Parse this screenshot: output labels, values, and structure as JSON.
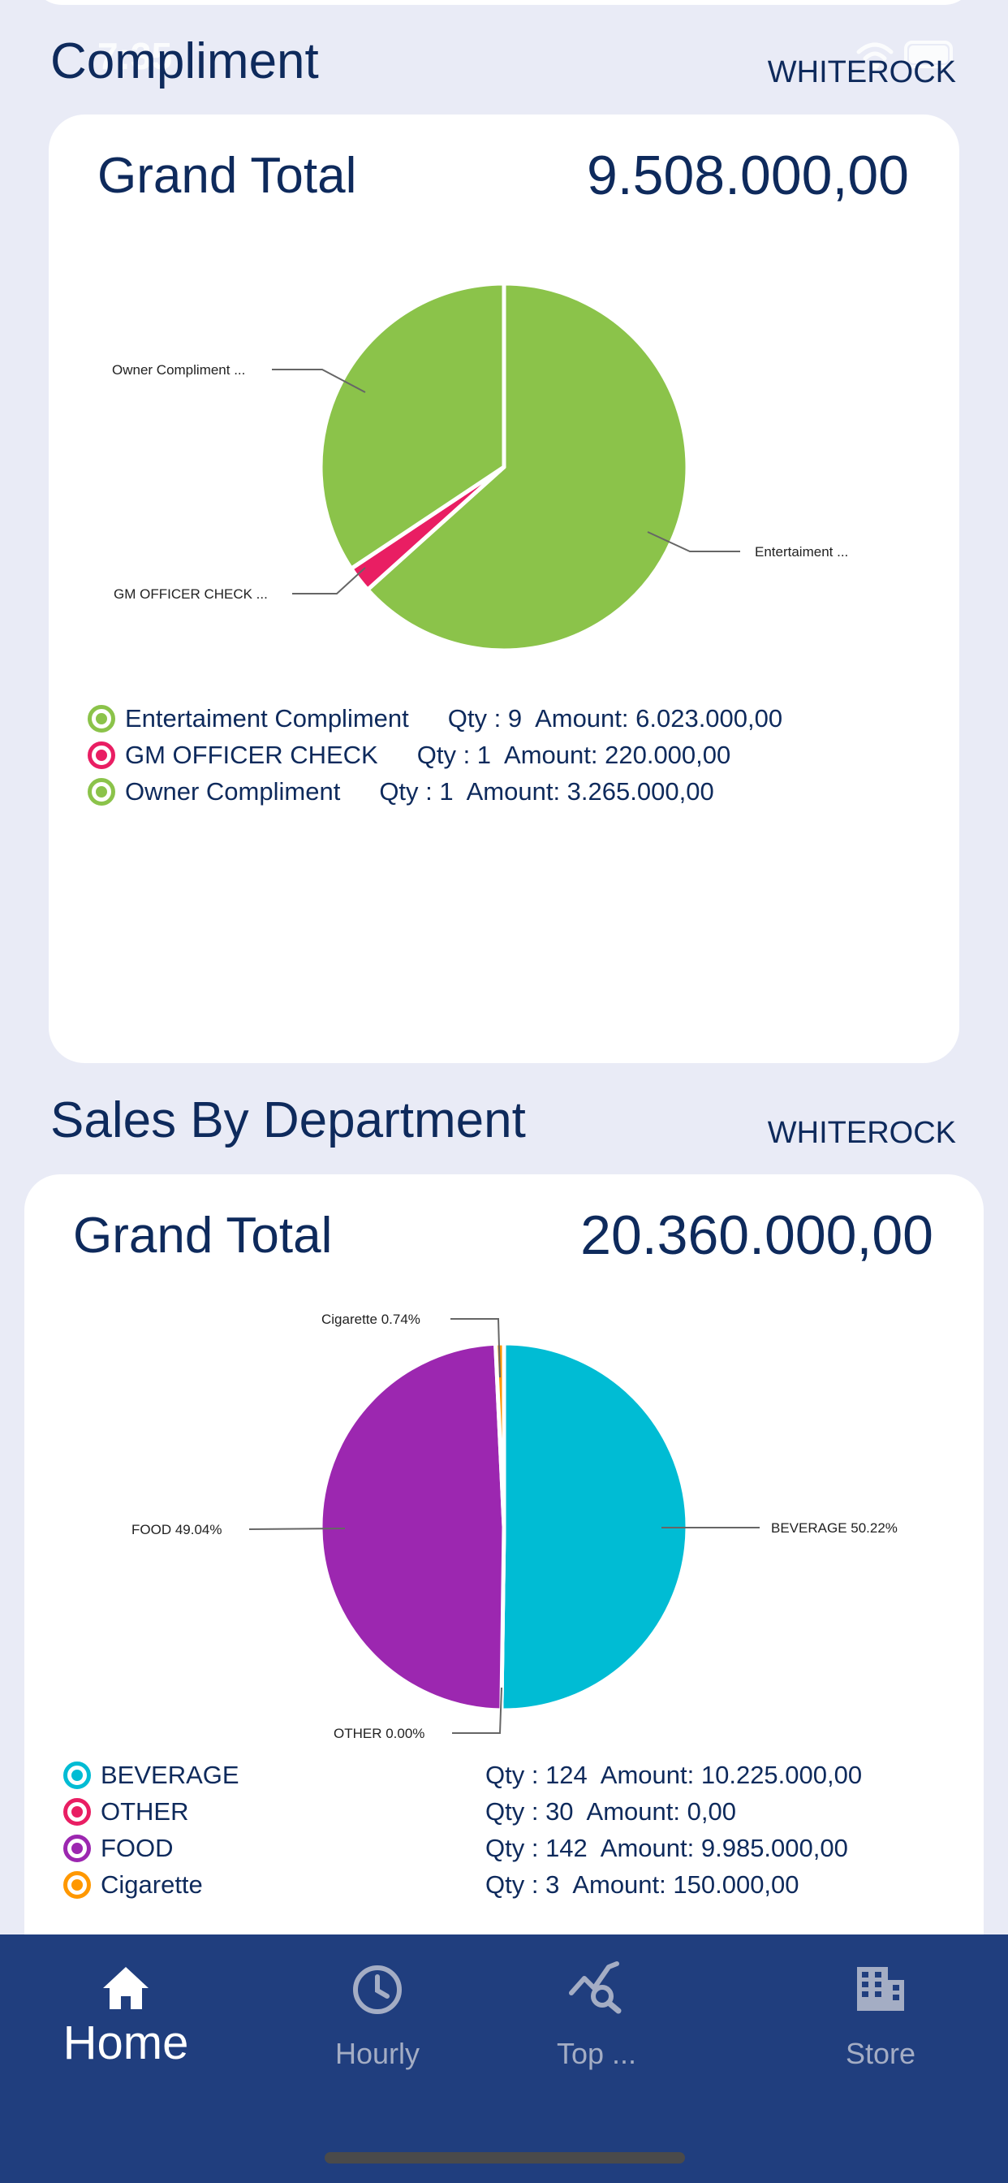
{
  "status": {
    "time": "7:35"
  },
  "compliment": {
    "title": "Compliment",
    "store": "WHITEROCK",
    "grand_total_label": "Grand Total",
    "grand_total_value": "9.508.000,00",
    "callouts": [
      "Owner Compliment ...",
      "GM OFFICER CHECK ...",
      "Entertaiment ..."
    ],
    "legend": [
      {
        "name": "Entertaiment Compliment",
        "qty": "Qty : 9",
        "amount": "Amount: 6.023.000,00",
        "color": "#8bc34a"
      },
      {
        "name": "GM OFFICER CHECK",
        "qty": "Qty : 1",
        "amount": "Amount: 220.000,00",
        "color": "#e91e63"
      },
      {
        "name": "Owner Compliment",
        "qty": "Qty : 1",
        "amount": "Amount: 3.265.000,00",
        "color": "#8bc34a"
      }
    ]
  },
  "sales": {
    "title": "Sales By Department",
    "store": "WHITEROCK",
    "grand_total_label": "Grand Total",
    "grand_total_value": "20.360.000,00",
    "callouts": [
      "Cigarette  0.74%",
      "FOOD  49.04%",
      "BEVERAGE  50.22%",
      "OTHER   0.00%"
    ],
    "legend": [
      {
        "name": "BEVERAGE",
        "qty": "Qty : 124",
        "amount": "Amount: 10.225.000,00",
        "color": "#00bcd4"
      },
      {
        "name": "OTHER",
        "qty": "Qty : 30",
        "amount": "Amount: 0,00",
        "color": "#e91e63"
      },
      {
        "name": "FOOD",
        "qty": "Qty : 142",
        "amount": "Amount: 9.985.000,00",
        "color": "#9c27b0"
      },
      {
        "name": "Cigarette",
        "qty": "Qty : 3",
        "amount": "Amount: 150.000,00",
        "color": "#ff9800"
      }
    ]
  },
  "chart_data": [
    {
      "type": "pie",
      "categories": [
        "Entertaiment Compliment",
        "GM OFFICER CHECK",
        "Owner Compliment"
      ],
      "values": [
        6023000,
        220000,
        3265000
      ],
      "colors": [
        "#8bc34a",
        "#e91e63",
        "#8bc34a"
      ]
    },
    {
      "type": "pie",
      "categories": [
        "BEVERAGE",
        "OTHER",
        "FOOD",
        "Cigarette"
      ],
      "values": [
        10225000,
        0,
        9985000,
        150000
      ],
      "colors": [
        "#00bcd4",
        "#e91e63",
        "#9c27b0",
        "#ff9800"
      ]
    }
  ],
  "nav": {
    "items": [
      {
        "label": "Home",
        "icon": "home-icon",
        "active": true
      },
      {
        "label": "Hourly",
        "icon": "clock-icon",
        "active": false
      },
      {
        "label": "Top ...",
        "icon": "trend-search-icon",
        "active": false
      },
      {
        "label": "Store",
        "icon": "building-icon",
        "active": false
      }
    ]
  }
}
